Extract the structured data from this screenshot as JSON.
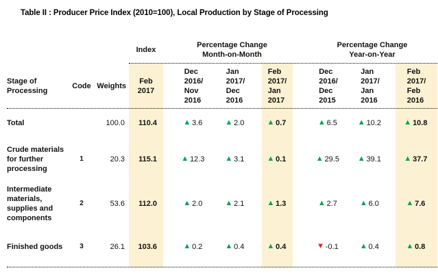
{
  "title": "Table II : Producer Price  Index (2010=100),  Local Production by Stage of Processing",
  "colors": {
    "highlight_column": "#FCF2D3",
    "increase_green": "#00A651",
    "decrease_red": "#EE1C25"
  },
  "icons": {
    "up_symbol": "▲",
    "down_symbol": "▼"
  },
  "table": {
    "group_headers": {
      "index": "Index",
      "mom": "Percentage Change\nMonth-on-Month",
      "yoy": "Percentage Change\nYear-on-Year"
    },
    "column_headers": {
      "stage": "Stage of\nProcessing",
      "code": "Code",
      "weights": "Weights",
      "index_period": "Feb\n2017",
      "mom": [
        "Dec\n2016/\nNov\n2016",
        "Jan\n2017/\nDec\n2016",
        "Feb\n2017/\nJan\n2017"
      ],
      "yoy": [
        "Dec\n2016/\nDec\n2015",
        "Jan\n2017/\nJan\n2016",
        "Feb\n2017/\nFeb\n2016"
      ]
    },
    "rows": [
      {
        "stage": "Total",
        "code": "",
        "weights": "100.0",
        "index": "110.4",
        "mom": [
          {
            "dir": "up",
            "value": "3.6"
          },
          {
            "dir": "up",
            "value": "2.0"
          },
          {
            "dir": "up",
            "value": "0.7"
          }
        ],
        "yoy": [
          {
            "dir": "up",
            "value": "6.5"
          },
          {
            "dir": "up",
            "value": "10.2"
          },
          {
            "dir": "up",
            "value": "10.8"
          }
        ]
      },
      {
        "stage": "Crude materials for further processing",
        "code": "1",
        "weights": "20.3",
        "index": "115.1",
        "mom": [
          {
            "dir": "up",
            "value": "12.3"
          },
          {
            "dir": "up",
            "value": "3.1"
          },
          {
            "dir": "up",
            "value": "0.1"
          }
        ],
        "yoy": [
          {
            "dir": "up",
            "value": "29.5"
          },
          {
            "dir": "up",
            "value": "39.1"
          },
          {
            "dir": "up",
            "value": "37.7"
          }
        ]
      },
      {
        "stage": "Intermediate materials, supplies and components",
        "code": "2",
        "weights": "53.6",
        "index": "112.0",
        "mom": [
          {
            "dir": "up",
            "value": "2.0"
          },
          {
            "dir": "up",
            "value": "2.1"
          },
          {
            "dir": "up",
            "value": "1.3"
          }
        ],
        "yoy": [
          {
            "dir": "up",
            "value": "2.7"
          },
          {
            "dir": "up",
            "value": "6.0"
          },
          {
            "dir": "up",
            "value": "7.6"
          }
        ]
      },
      {
        "stage": "Finished goods",
        "code": "3",
        "weights": "26.1",
        "index": "103.6",
        "mom": [
          {
            "dir": "up",
            "value": "0.2"
          },
          {
            "dir": "up",
            "value": "0.4"
          },
          {
            "dir": "up",
            "value": "0.4"
          }
        ],
        "yoy": [
          {
            "dir": "down",
            "value": "-0.1"
          },
          {
            "dir": "up",
            "value": "0.4"
          },
          {
            "dir": "up",
            "value": "0.8"
          }
        ]
      }
    ]
  }
}
